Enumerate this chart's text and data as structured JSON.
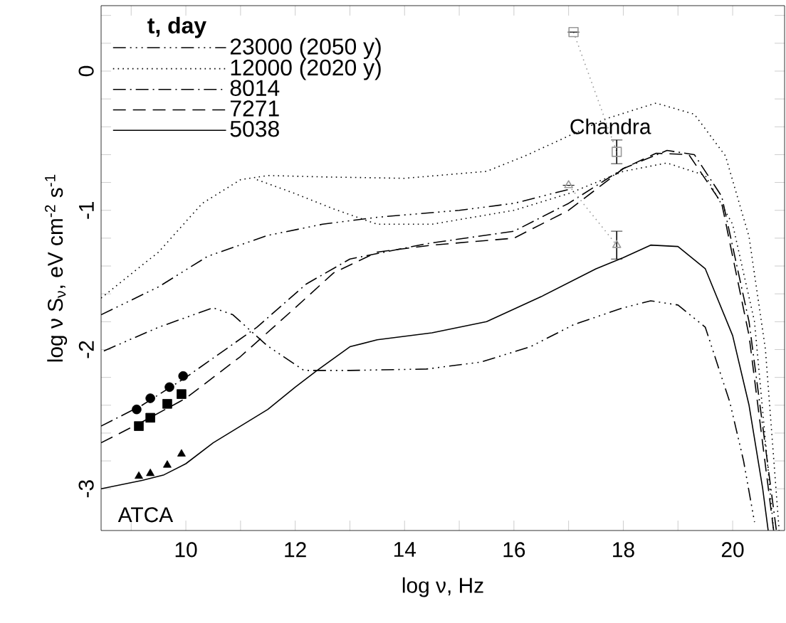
{
  "chart_data": {
    "type": "line",
    "xlabel": "log ν,  Hz",
    "ylabel": "log ν S$_{ν}$, eV cm$^{-2}$ s$^{-1}$",
    "legend_title": "**t, day**",
    "legend": "top left",
    "xlim": [
      8.45,
      20.95
    ],
    "ylim": [
      -3.3,
      0.47
    ],
    "xticks": [
      {
        "value": 9,
        "label": null
      },
      10,
      {
        "value": 11,
        "label": null
      },
      12,
      {
        "value": 13,
        "label": null
      },
      14,
      {
        "value": 15,
        "label": null
      },
      16,
      {
        "value": 17,
        "label": null
      },
      18,
      {
        "value": 19,
        "label": null
      },
      20
    ],
    "yticks": [
      -3,
      {
        "value": -2.8,
        "label": null
      },
      {
        "value": -2.6,
        "label": null
      },
      {
        "value": -2.4,
        "label": null
      },
      {
        "value": -2.2,
        "label": null
      },
      -2,
      {
        "value": -1.8,
        "label": null
      },
      {
        "value": -1.6,
        "label": null
      },
      {
        "value": -1.4,
        "label": null
      },
      {
        "value": -1.2,
        "label": null
      },
      -1,
      {
        "value": -0.8,
        "label": null
      },
      {
        "value": -0.6,
        "label": null
      },
      {
        "value": -0.4,
        "label": null
      },
      {
        "value": -0.2,
        "label": null
      },
      0,
      {
        "value": 0.2,
        "label": null
      },
      {
        "value": 0.4,
        "label": null
      }
    ],
    "annotations": [
      "Chandra",
      "ATCA"
    ],
    "series": [
      {
        "name": "23000 (2050 y)",
        "color": "#000000",
        "line_style": "dashdotdot",
        "marker": "none",
        "x": [
          8.5,
          9.5,
          10.5,
          10.86,
          11.48,
          12.16,
          13,
          14.4,
          15.4,
          16.3,
          17.1,
          18,
          18.5,
          19.0,
          19.5,
          19.95,
          20.2,
          20.4
        ],
        "values": [
          -2.01,
          -1.84,
          -1.7,
          -1.75,
          -1.97,
          -2.15,
          -2.15,
          -2.14,
          -2.09,
          -1.98,
          -1.82,
          -1.7,
          -1.65,
          -1.68,
          -1.84,
          -2.38,
          -2.8,
          -3.24
        ]
      },
      {
        "name": "12000 (2020 y)",
        "color": "#000000",
        "line_style": "dotted",
        "marker": "none",
        "x": [
          8.45,
          9.5,
          10.3,
          11,
          11.5,
          12.5,
          14,
          15.5,
          16.2,
          17.7,
          18.6,
          19.3,
          19.87,
          20.3,
          20.6,
          20.85
        ],
        "values": [
          -1.63,
          -1.3,
          -0.95,
          -0.78,
          -0.75,
          -0.76,
          -0.77,
          -0.72,
          -0.61,
          -0.34,
          -0.23,
          -0.31,
          -0.61,
          -1.19,
          -2.0,
          -3.3
        ]
      },
      {
        "name": "8014",
        "color": "#000000",
        "line_style": "dashdot",
        "marker": "none",
        "x": [
          8.45,
          9.2,
          10,
          11.3,
          12.2,
          13,
          14.4,
          16,
          17,
          18,
          18.8,
          19.3,
          19.8,
          20.3,
          20.8
        ],
        "values": [
          -2.55,
          -2.4,
          -2.2,
          -1.84,
          -1.53,
          -1.35,
          -1.24,
          -1.15,
          -0.95,
          -0.7,
          -0.57,
          -0.6,
          -0.9,
          -1.8,
          -3.3
        ]
      },
      {
        "name": "7271",
        "color": "#000000",
        "line_style": "dashed",
        "marker": "none",
        "x": [
          8.45,
          9.2,
          10,
          11,
          12,
          12.7,
          13.5,
          14.5,
          16,
          17,
          18,
          18.6,
          19.2,
          19.8,
          20.3,
          20.75
        ],
        "values": [
          -2.67,
          -2.52,
          -2.35,
          -2.05,
          -1.7,
          -1.45,
          -1.3,
          -1.25,
          -1.2,
          -1.0,
          -0.7,
          -0.59,
          -0.6,
          -0.95,
          -1.9,
          -3.3
        ]
      },
      {
        "name": "5038",
        "color": "#000000",
        "line_style": "solid",
        "marker": "none",
        "x": [
          8.45,
          9.2,
          9.6,
          10,
          10.5,
          11,
          11.5,
          12,
          12.4,
          13,
          13.5,
          14.5,
          15.5,
          16.5,
          17.5,
          18,
          18.5,
          19,
          19.5,
          20,
          20.3,
          20.55,
          20.65
        ],
        "values": [
          -3.0,
          -2.94,
          -2.9,
          -2.82,
          -2.67,
          -2.55,
          -2.43,
          -2.27,
          -2.15,
          -1.98,
          -1.93,
          -1.88,
          -1.8,
          -1.62,
          -1.42,
          -1.34,
          -1.25,
          -1.26,
          -1.42,
          -1.9,
          -2.4,
          -3.0,
          -3.3
        ]
      },
      {
        "color": "#000000",
        "line_style": "dotted",
        "marker": "none",
        "x": [
          11.3,
          12,
          12.7,
          13.5,
          14.5,
          16,
          17,
          18,
          18.8,
          19.5,
          20,
          20.4,
          20.75
        ],
        "values": [
          -0.78,
          -0.88,
          -0.99,
          -1.1,
          -1.1,
          -1.0,
          -0.88,
          -0.72,
          -0.66,
          -0.75,
          -1.1,
          -1.8,
          -3.3
        ]
      },
      {
        "color": "#000000",
        "line_style": "dashdotdot",
        "marker": "none",
        "x": [
          8.45,
          9.5,
          10.4,
          11.5,
          12.5,
          13.5,
          15,
          16,
          17
        ],
        "values": [
          -1.75,
          -1.55,
          -1.33,
          -1.18,
          -1.1,
          -1.05,
          -1.0,
          -0.95,
          -0.85
        ]
      },
      {
        "type": "scatter",
        "color": "#000000",
        "marker": "circle",
        "x": [
          9.1,
          9.35,
          9.7,
          9.95
        ],
        "values": [
          -2.43,
          -2.35,
          -2.27,
          -2.19
        ]
      },
      {
        "type": "scatter",
        "color": "#000000",
        "marker": "square",
        "x": [
          9.14,
          9.35,
          9.66,
          9.92
        ],
        "values": [
          -2.55,
          -2.49,
          -2.39,
          -2.32
        ]
      },
      {
        "type": "scatter",
        "color": "#000000",
        "marker": "triangle",
        "x": [
          9.14,
          9.35,
          9.66,
          9.92
        ],
        "values": [
          -2.91,
          -2.89,
          -2.83,
          -2.75
        ]
      },
      {
        "type": "line",
        "color": "#999999",
        "line_style": "dotted",
        "marker": "square",
        "x": [
          17.09,
          17.88
        ],
        "values": [
          0.28,
          -0.58
        ],
        "errors": [
          null,
          0.085
        ]
      },
      {
        "type": "line",
        "color": "#999999",
        "line_style": "dotted",
        "marker": "triangle",
        "x": [
          17.0,
          17.88
        ],
        "values": [
          -0.82,
          -1.25
        ],
        "errors": [
          null,
          0.1
        ]
      }
    ]
  }
}
